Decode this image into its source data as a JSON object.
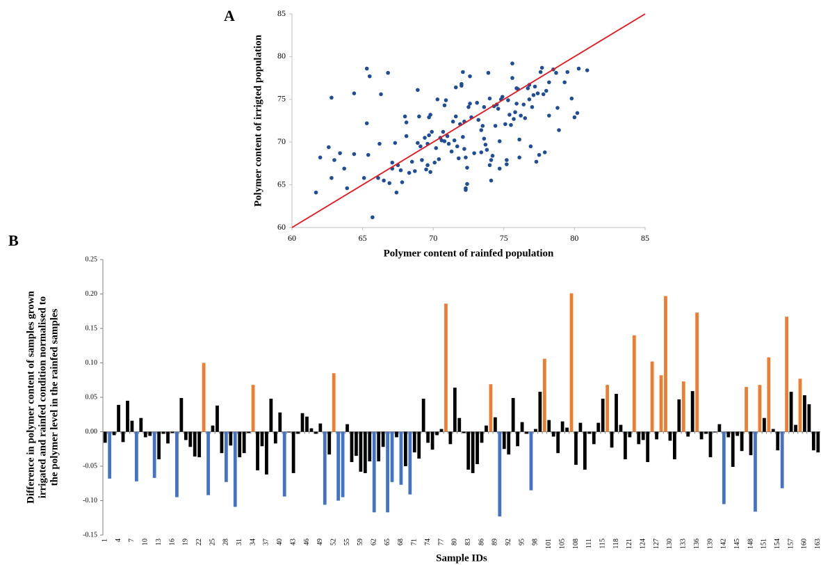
{
  "chart_data": [
    {
      "type": "scatter",
      "panel_label": "A",
      "x_label": "Polymer content of rainfed population",
      "y_label": "Polymer content of irrigted population",
      "xlim": [
        60,
        85
      ],
      "ylim": [
        60,
        85
      ],
      "xticks": [
        60,
        65,
        70,
        75,
        80,
        85
      ],
      "yticks": [
        60,
        65,
        70,
        75,
        80,
        85
      ],
      "color": "#1f4e96",
      "reference_line": {
        "x": [
          60,
          85
        ],
        "y": [
          60,
          85
        ],
        "color": "#e8141c"
      },
      "x": [
        61.7,
        62.0,
        62.6,
        62.8,
        62.8,
        63.0,
        63.4,
        63.7,
        63.9,
        64.4,
        64.4,
        65.1,
        65.3,
        65.3,
        65.4,
        65.5,
        65.7,
        66.1,
        66.2,
        66.3,
        66.5,
        66.8,
        66.9,
        67.1,
        67.1,
        67.3,
        67.4,
        67.5,
        67.7,
        67.8,
        68.0,
        68.1,
        68.1,
        68.3,
        68.5,
        68.7,
        68.9,
        68.9,
        69.0,
        69.1,
        69.2,
        69.4,
        69.5,
        69.6,
        69.6,
        69.7,
        69.7,
        69.8,
        69.8,
        69.9,
        70.1,
        70.2,
        70.3,
        70.4,
        70.5,
        70.6,
        70.7,
        70.8,
        70.8,
        70.9,
        71.0,
        71.1,
        71.3,
        71.4,
        71.5,
        71.6,
        71.6,
        71.7,
        71.8,
        71.9,
        72.0,
        72.0,
        72.1,
        72.1,
        72.2,
        72.2,
        72.3,
        72.3,
        72.3,
        72.4,
        72.4,
        72.5,
        72.6,
        72.6,
        72.7,
        72.9,
        73.1,
        73.2,
        73.4,
        73.4,
        73.5,
        73.6,
        73.6,
        73.7,
        73.8,
        73.9,
        74.0,
        74.0,
        74.1,
        74.1,
        74.2,
        74.3,
        74.4,
        74.5,
        74.6,
        74.7,
        74.7,
        74.8,
        74.9,
        75.1,
        75.2,
        75.2,
        75.3,
        75.4,
        75.5,
        75.6,
        75.6,
        75.7,
        75.8,
        75.9,
        75.9,
        76.0,
        76.1,
        76.1,
        76.2,
        76.4,
        76.5,
        76.7,
        76.8,
        76.8,
        76.9,
        77.0,
        77.1,
        77.2,
        77.3,
        77.4,
        77.5,
        77.6,
        77.7,
        77.8,
        77.9,
        78.0,
        78.2,
        78.2,
        78.5,
        78.7,
        78.8,
        78.9,
        79.3,
        79.5,
        79.8,
        80.0,
        80.2,
        80.3,
        80.9
      ],
      "y": [
        64.1,
        68.2,
        69.4,
        75.2,
        65.8,
        67.9,
        68.7,
        66.9,
        64.6,
        75.7,
        68.6,
        65.8,
        78.6,
        72.2,
        68.5,
        77.7,
        61.2,
        65.8,
        69.8,
        75.6,
        65.5,
        78.1,
        65.2,
        67.6,
        66.9,
        69.9,
        64.1,
        67.3,
        66.7,
        65.3,
        73.0,
        70.7,
        72.3,
        66.4,
        67.7,
        66.6,
        76.1,
        69.9,
        73.0,
        69.5,
        67.9,
        70.5,
        66.8,
        67.3,
        69.8,
        70.8,
        72.9,
        73.2,
        66.5,
        71.2,
        67.6,
        69.3,
        75.0,
        68.0,
        70.5,
        70.2,
        71.2,
        74.3,
        70.1,
        74.9,
        70.7,
        69.8,
        68.9,
        72.4,
        70.2,
        73.0,
        76.4,
        69.5,
        68.1,
        72.1,
        76.8,
        76.6,
        78.2,
        70.6,
        72.4,
        69.2,
        68.2,
        64.6,
        64.4,
        67.0,
        65.1,
        74.1,
        74.5,
        77.7,
        72.9,
        68.7,
        74.6,
        72.6,
        68.8,
        71.4,
        71.9,
        74.1,
        70.4,
        69.7,
        69.1,
        78.1,
        67.3,
        75.1,
        67.9,
        65.5,
        68.4,
        74.2,
        71.9,
        74.4,
        73.9,
        70.1,
        66.9,
        75.0,
        75.3,
        72.1,
        67.9,
        67.4,
        74.9,
        73.2,
        72.0,
        79.2,
        77.5,
        72.7,
        73.5,
        76.3,
        74.5,
        76.2,
        68.2,
        70.3,
        73.1,
        74.4,
        72.8,
        76.3,
        75.0,
        76.7,
        69.5,
        74.1,
        75.5,
        76.5,
        67.7,
        75.7,
        68.5,
        78.2,
        78.7,
        75.6,
        68.8,
        76.0,
        73.1,
        77.0,
        78.5,
        78.1,
        74.0,
        71.4,
        77.0,
        78.2,
        75.1,
        72.9,
        73.4,
        78.6,
        78.4
      ]
    },
    {
      "type": "bar",
      "panel_label": "B",
      "x_label": "Sample IDs",
      "y_label": [
        "Difference in polymer content of samples grown",
        "irrigated and rainfed condition normalised to",
        "the polymer level in the rainfed samples"
      ],
      "ylim": [
        -0.15,
        0.25
      ],
      "yticks": [
        -0.15,
        {
          "value": -0.1,
          "label": "-0.10"
        },
        -0.05,
        {
          "value": 0,
          "label": "0.00"
        },
        0.05,
        {
          "value": 0.1,
          "label": "0.10"
        },
        0.15,
        {
          "value": 0.2,
          "label": "0.20"
        },
        0.25
      ],
      "categories": [
        "1",
        null,
        null,
        "4",
        null,
        null,
        "7",
        null,
        null,
        "10",
        null,
        null,
        "13",
        null,
        null,
        "16",
        null,
        null,
        "19",
        null,
        null,
        "22",
        null,
        null,
        "25",
        null,
        null,
        "28",
        null,
        null,
        "31",
        null,
        null,
        "34",
        null,
        null,
        "37",
        null,
        null,
        "40",
        null,
        null,
        "43",
        null,
        null,
        "46",
        null,
        null,
        "49",
        null,
        null,
        "52",
        null,
        null,
        "55",
        null,
        null,
        "59",
        null,
        null,
        "62",
        null,
        null,
        "65",
        null,
        null,
        "68",
        null,
        null,
        "71",
        null,
        null,
        "74",
        null,
        null,
        "77",
        null,
        null,
        "80",
        null,
        null,
        "83",
        null,
        null,
        "86",
        null,
        null,
        "89",
        null,
        null,
        "92",
        null,
        null,
        "95",
        null,
        null,
        "98",
        null,
        null,
        "101",
        null,
        null,
        "105",
        null,
        null,
        "108",
        null,
        null,
        "111",
        null,
        null,
        "115",
        null,
        null,
        "118",
        null,
        null,
        "121",
        null,
        null,
        "124",
        null,
        null,
        "127",
        null,
        null,
        "130",
        null,
        null,
        "133",
        null,
        null,
        "136",
        null,
        null,
        "139",
        null,
        null,
        "142",
        null,
        null,
        "145",
        null,
        null,
        "148",
        null,
        null,
        "151",
        null,
        null,
        "154",
        null,
        null,
        "157",
        null,
        null,
        "160",
        null,
        null,
        "163"
      ],
      "values": [
        -0.016,
        -0.068,
        -0.005,
        0.039,
        -0.015,
        0.045,
        0.016,
        -0.072,
        0.02,
        -0.008,
        -0.006,
        -0.067,
        -0.04,
        -0.003,
        -0.017,
        -0.002,
        -0.095,
        0.049,
        -0.012,
        -0.022,
        -0.036,
        -0.037,
        0.1,
        -0.092,
        0.009,
        0.038,
        -0.031,
        -0.073,
        -0.02,
        -0.109,
        -0.037,
        -0.031,
        -0.002,
        0.068,
        -0.056,
        -0.021,
        -0.062,
        0.048,
        -0.017,
        0.028,
        -0.094,
        -0.001,
        -0.06,
        -0.003,
        0.027,
        0.022,
        0.005,
        -0.003,
        0.012,
        -0.106,
        -0.033,
        0.085,
        -0.1,
        -0.095,
        0.011,
        -0.044,
        -0.035,
        -0.058,
        -0.06,
        -0.043,
        -0.117,
        -0.043,
        -0.022,
        -0.117,
        -0.073,
        -0.008,
        -0.077,
        -0.05,
        -0.091,
        -0.03,
        -0.039,
        0.048,
        -0.016,
        -0.026,
        -0.005,
        0.004,
        0.186,
        -0.018,
        0.064,
        0.02,
        -0.002,
        -0.055,
        -0.06,
        -0.047,
        -0.016,
        0.009,
        0.069,
        0.021,
        -0.123,
        -0.025,
        -0.033,
        0.049,
        -0.021,
        0.014,
        -0.003,
        -0.085,
        0.004,
        0.058,
        0.106,
        0.017,
        -0.007,
        -0.031,
        0.015,
        0.006,
        0.201,
        -0.048,
        0.013,
        -0.055,
        -0.003,
        -0.018,
        0.013,
        0.048,
        0.068,
        -0.023,
        0.055,
        0.01,
        -0.04,
        -0.008,
        0.14,
        -0.018,
        -0.012,
        -0.044,
        0.102,
        -0.011,
        0.082,
        0.197,
        -0.013,
        -0.04,
        0.047,
        0.073,
        -0.007,
        0.059,
        0.173,
        -0.011,
        -0.003,
        -0.037,
        -0.001,
        0.011,
        -0.105,
        -0.008,
        -0.051,
        -0.006,
        -0.028,
        0.065,
        -0.034,
        -0.116,
        0.068,
        0.02,
        0.108,
        0.004,
        -0.027,
        -0.082,
        0.167,
        0.058,
        0.01,
        0.077,
        0.053,
        0.04,
        -0.027,
        -0.03
      ],
      "colors": [
        "#000",
        "#4472c4",
        "#000",
        "#000",
        "#000",
        "#000",
        "#000",
        "#4472c4",
        "#000",
        "#000",
        "#000",
        "#4472c4",
        "#000",
        "#000",
        "#000",
        "#000",
        "#4472c4",
        "#000",
        "#000",
        "#000",
        "#000",
        "#000",
        "#ed7d31",
        "#4472c4",
        "#000",
        "#000",
        "#000",
        "#4472c4",
        "#000",
        "#4472c4",
        "#000",
        "#000",
        "#000",
        "#ed7d31",
        "#000",
        "#000",
        "#000",
        "#000",
        "#000",
        "#000",
        "#4472c4",
        "#000",
        "#000",
        "#000",
        "#000",
        "#000",
        "#000",
        "#000",
        "#000",
        "#4472c4",
        "#000",
        "#ed7d31",
        "#4472c4",
        "#4472c4",
        "#000",
        "#000",
        "#000",
        "#000",
        "#000",
        "#000",
        "#4472c4",
        "#000",
        "#000",
        "#4472c4",
        "#4472c4",
        "#000",
        "#4472c4",
        "#000",
        "#4472c4",
        "#000",
        "#000",
        "#000",
        "#000",
        "#000",
        "#000",
        "#000",
        "#ed7d31",
        "#000",
        "#000",
        "#000",
        "#000",
        "#000",
        "#000",
        "#000",
        "#000",
        "#000",
        "#ed7d31",
        "#000",
        "#4472c4",
        "#000",
        "#000",
        "#000",
        "#000",
        "#000",
        "#000",
        "#4472c4",
        "#000",
        "#000",
        "#ed7d31",
        "#000",
        "#000",
        "#000",
        "#000",
        "#000",
        "#ed7d31",
        "#000",
        "#000",
        "#000",
        "#000",
        "#000",
        "#000",
        "#000",
        "#ed7d31",
        "#000",
        "#000",
        "#000",
        "#000",
        "#000",
        "#ed7d31",
        "#000",
        "#000",
        "#000",
        "#ed7d31",
        "#000",
        "#ed7d31",
        "#ed7d31",
        "#000",
        "#000",
        "#000",
        "#ed7d31",
        "#000",
        "#000",
        "#ed7d31",
        "#000",
        "#000",
        "#000",
        "#000",
        "#000",
        "#4472c4",
        "#000",
        "#000",
        "#000",
        "#000",
        "#ed7d31",
        "#000",
        "#4472c4",
        "#ed7d31",
        "#000",
        "#ed7d31",
        "#000",
        "#000",
        "#4472c4",
        "#ed7d31",
        "#000",
        "#000",
        "#ed7d31",
        "#000",
        "#000",
        "#000",
        "#000"
      ]
    }
  ]
}
